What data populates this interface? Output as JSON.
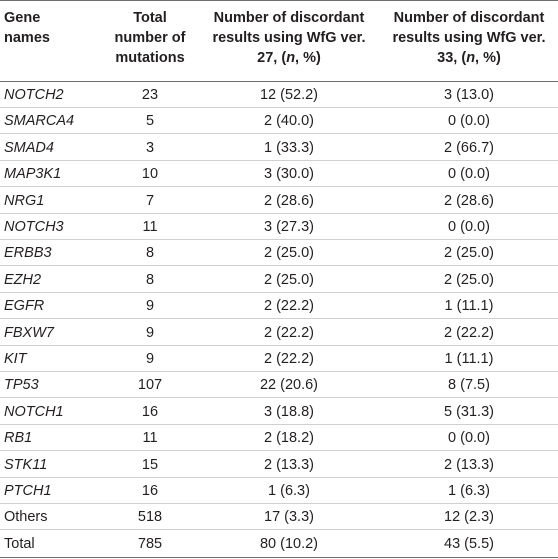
{
  "table": {
    "headers": [
      [
        "Gene",
        "names"
      ],
      [
        "Total",
        "number of",
        "mutations"
      ],
      [
        "Number of discordant",
        "results using WfG ver.",
        "27, (n, %)"
      ],
      [
        "Number of discordant",
        "results using WfG ver.",
        "33, (n, %)"
      ]
    ],
    "rows": [
      {
        "gene": "NOTCH2",
        "italic": true,
        "total": "23",
        "v27": "12 (52.2)",
        "v33": "3 (13.0)"
      },
      {
        "gene": "SMARCA4",
        "italic": true,
        "total": "5",
        "v27": "2 (40.0)",
        "v33": "0 (0.0)"
      },
      {
        "gene": "SMAD4",
        "italic": true,
        "total": "3",
        "v27": "1 (33.3)",
        "v33": "2 (66.7)"
      },
      {
        "gene": "MAP3K1",
        "italic": true,
        "total": "10",
        "v27": "3 (30.0)",
        "v33": "0 (0.0)"
      },
      {
        "gene": "NRG1",
        "italic": true,
        "total": "7",
        "v27": "2 (28.6)",
        "v33": "2 (28.6)"
      },
      {
        "gene": "NOTCH3",
        "italic": true,
        "total": "11",
        "v27": "3 (27.3)",
        "v33": "0 (0.0)"
      },
      {
        "gene": "ERBB3",
        "italic": true,
        "total": "8",
        "v27": "2 (25.0)",
        "v33": "2 (25.0)"
      },
      {
        "gene": "EZH2",
        "italic": true,
        "total": "8",
        "v27": "2 (25.0)",
        "v33": "2 (25.0)"
      },
      {
        "gene": "EGFR",
        "italic": true,
        "total": "9",
        "v27": "2 (22.2)",
        "v33": "1 (11.1)"
      },
      {
        "gene": "FBXW7",
        "italic": true,
        "total": "9",
        "v27": "2 (22.2)",
        "v33": "2 (22.2)"
      },
      {
        "gene": "KIT",
        "italic": true,
        "total": "9",
        "v27": "2 (22.2)",
        "v33": "1 (11.1)"
      },
      {
        "gene": "TP53",
        "italic": true,
        "total": "107",
        "v27": "22 (20.6)",
        "v33": "8 (7.5)"
      },
      {
        "gene": "NOTCH1",
        "italic": true,
        "total": "16",
        "v27": "3 (18.8)",
        "v33": "5 (31.3)"
      },
      {
        "gene": "RB1",
        "italic": true,
        "total": "11",
        "v27": "2 (18.2)",
        "v33": "0 (0.0)"
      },
      {
        "gene": "STK11",
        "italic": true,
        "total": "15",
        "v27": "2 (13.3)",
        "v33": "2 (13.3)"
      },
      {
        "gene": "PTCH1",
        "italic": true,
        "total": "16",
        "v27": "1 (6.3)",
        "v33": "1 (6.3)"
      },
      {
        "gene": "Others",
        "italic": false,
        "total": "518",
        "v27": "17 (3.3)",
        "v33": "12 (2.3)"
      },
      {
        "gene": "Total",
        "italic": false,
        "total": "785",
        "v27": "80 (10.2)",
        "v33": "43 (5.5)"
      }
    ]
  }
}
